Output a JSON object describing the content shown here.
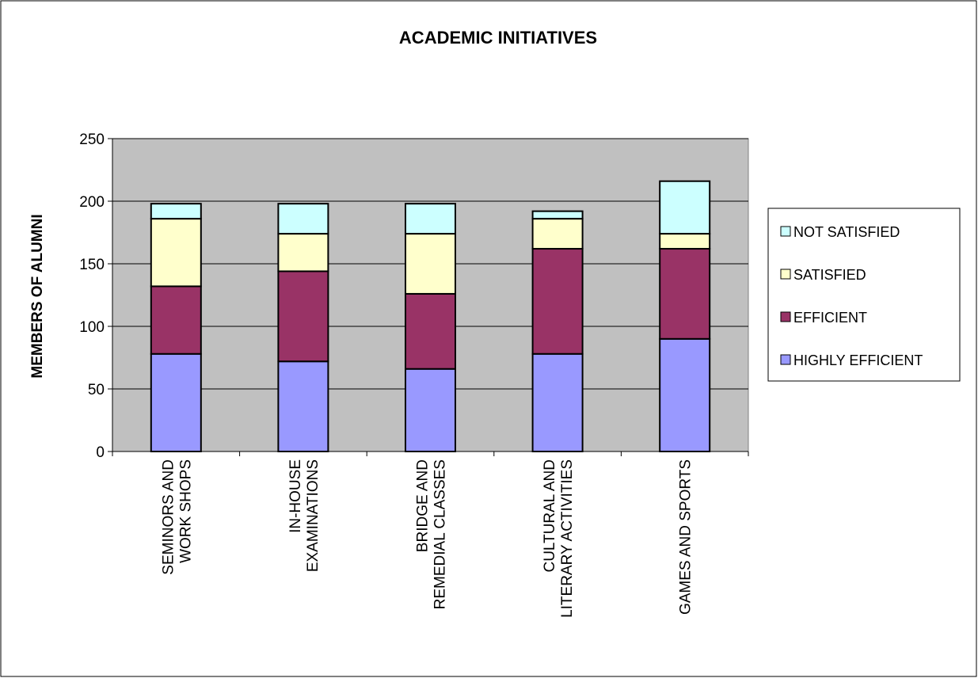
{
  "chart_data": {
    "type": "bar",
    "stacked": true,
    "title": "ACADEMIC INITIATIVES",
    "xlabel": "",
    "ylabel": "MEMBERS OF ALUMNI",
    "ylim": [
      0,
      250
    ],
    "yticks": [
      0,
      50,
      100,
      150,
      200,
      250
    ],
    "grid": true,
    "legend_position": "right",
    "categories": [
      [
        "SEMINORS AND",
        "WORK SHOPS"
      ],
      [
        "IN-HOUSE",
        "EXAMINATIONS"
      ],
      [
        "BRIDGE AND",
        "REMEDIAL CLASSES"
      ],
      [
        "CULTURAL AND",
        "LITERARY ACTIVITIES"
      ],
      [
        "GAMES AND SPORTS"
      ]
    ],
    "series": [
      {
        "name": "HIGHLY EFFICIENT",
        "color": "#9999ff",
        "values": [
          78,
          72,
          66,
          78,
          90
        ]
      },
      {
        "name": "EFFICIENT",
        "color": "#993366",
        "values": [
          54,
          72,
          60,
          84,
          72
        ]
      },
      {
        "name": "SATISFIED",
        "color": "#ffffcc",
        "values": [
          54,
          30,
          48,
          24,
          12
        ]
      },
      {
        "name": "NOT SATISFIED",
        "color": "#ccffff",
        "values": [
          12,
          24,
          24,
          6,
          42
        ]
      }
    ],
    "plot_background": "#c0c0c0"
  }
}
